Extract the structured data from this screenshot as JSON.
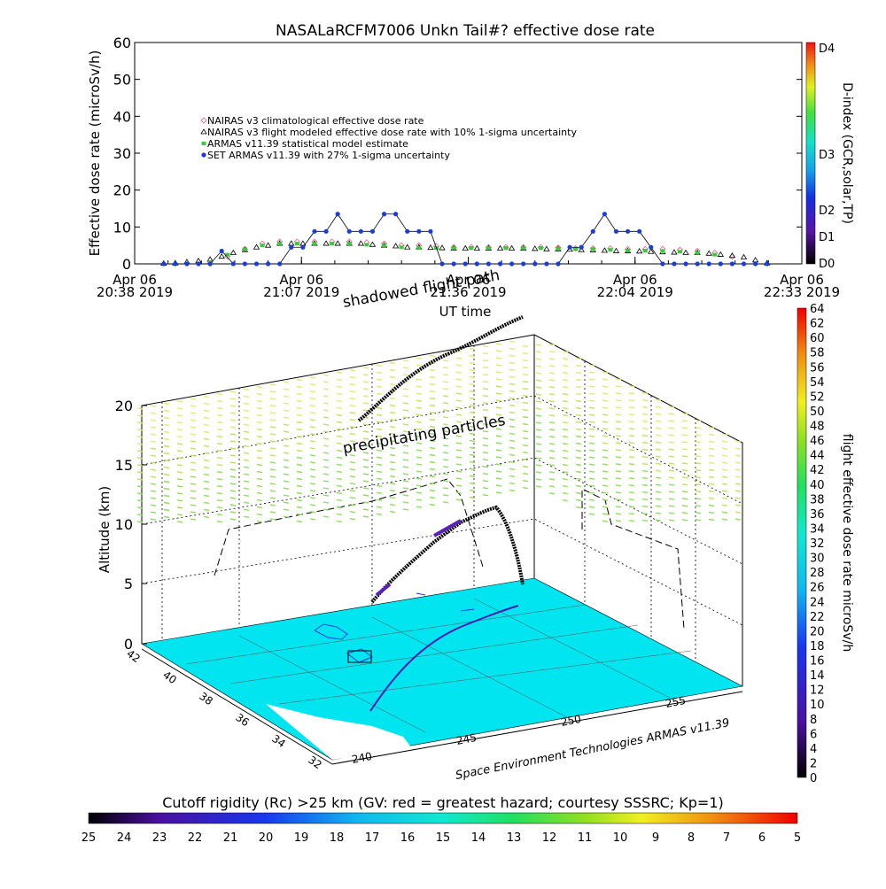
{
  "chart_data": [
    {
      "type": "line",
      "title": "NASALaRCFM7006  Unkn Tail#? effective dose rate",
      "ylabel": "Effective dose rate (microSv/h)",
      "xlabel": "UT time",
      "ylim": [
        0,
        60
      ],
      "yticks": [
        "0",
        "10",
        "20",
        "30",
        "40",
        "50",
        "60"
      ],
      "xticks": [
        {
          "date": "Apr 06",
          "time": "20:38",
          "year": "2019"
        },
        {
          "date": "Apr 06",
          "time": "21:07",
          "year": "2019"
        },
        {
          "date": "Apr 06",
          "time": "21:36",
          "year": "2019"
        },
        {
          "date": "Apr 06",
          "time": "22:04",
          "year": "2019"
        },
        {
          "date": "Apr 06",
          "time": "22:33",
          "year": "2019"
        }
      ],
      "x_unit": "minutes after 20:38 UT",
      "xlim": [
        0,
        115
      ],
      "legend_position": "upper-left",
      "series": [
        {
          "name": "NAIRAS v3 climatological effective dose rate",
          "color": "#e0608a",
          "marker": "diamond",
          "x": [
            13,
            16,
            19,
            22,
            25,
            28,
            31,
            34,
            37,
            40,
            43,
            46,
            49,
            52,
            55,
            58,
            61,
            64,
            67,
            70,
            73,
            76,
            79,
            82,
            85,
            88,
            91,
            94,
            97,
            100,
            103
          ],
          "y": [
            0.2,
            2,
            4,
            5.5,
            6,
            6,
            6,
            6,
            6,
            5.8,
            5.5,
            5,
            5,
            4.8,
            4.5,
            4.5,
            4.5,
            4.5,
            4.5,
            4.5,
            4.4,
            4.2,
            4.2,
            4.2,
            4,
            4,
            4,
            3.8,
            3.5,
            3,
            2
          ]
        },
        {
          "name": "NAIRAS v3 flight modeled effective dose rate with 10% 1-sigma uncertainty",
          "color": "#000000",
          "marker": "triangle",
          "x": [
            5,
            7,
            9,
            11,
            13,
            15,
            17,
            19,
            21,
            23,
            25,
            27,
            29,
            31,
            33,
            35,
            37,
            39,
            41,
            43,
            45,
            47,
            49,
            51,
            53,
            55,
            57,
            59,
            61,
            63,
            65,
            67,
            69,
            71,
            73,
            75,
            77,
            79,
            81,
            83,
            85,
            87,
            89,
            91,
            93,
            95,
            97,
            99,
            101,
            103,
            105,
            107,
            109
          ],
          "y": [
            0.1,
            0.2,
            0.5,
            0.8,
            1.2,
            2,
            3,
            3.8,
            4.5,
            5,
            5.5,
            5.5,
            5.5,
            5.5,
            5.5,
            5.5,
            5.5,
            5.5,
            5.2,
            5,
            4.8,
            4.5,
            4.5,
            4.4,
            4.3,
            4.2,
            4.2,
            4.2,
            4.2,
            4.2,
            4.2,
            4.2,
            4.1,
            4,
            4,
            3.9,
            3.8,
            3.7,
            3.6,
            3.5,
            3.5,
            3.4,
            3.3,
            3.2,
            3.1,
            3,
            3,
            2.8,
            2.5,
            2.2,
            1.8,
            1,
            0.2
          ]
        },
        {
          "name": "ARMAS v11.39 statistical model estimate",
          "color": "#3cc83c",
          "marker": "square",
          "x": [
            13,
            16,
            19,
            22,
            25,
            28,
            31,
            34,
            37,
            40,
            43,
            46,
            49,
            52,
            55,
            58,
            61,
            64,
            67,
            70,
            73,
            76,
            79,
            82,
            85,
            88,
            91,
            94,
            97,
            100
          ],
          "y": [
            0.5,
            2.5,
            4,
            5,
            5.5,
            5.5,
            5.5,
            5.5,
            5.5,
            5.2,
            5,
            4.5,
            4.3,
            4.3,
            4.3,
            4.3,
            4.3,
            4.3,
            4.3,
            4.3,
            4.1,
            4,
            4,
            3.8,
            3.6,
            3.6,
            3.5,
            3.3,
            3,
            2.5
          ]
        },
        {
          "name": "SET ARMAS v11.39 with 27% 1-sigma uncertainty",
          "color": "#1a3cd8",
          "marker": "circle",
          "x": [
            5,
            7,
            9,
            11,
            13,
            15,
            17,
            19,
            21,
            23,
            25,
            27,
            29,
            31,
            33,
            35,
            37,
            39,
            41,
            43,
            45,
            47,
            49,
            51,
            53,
            55,
            57,
            59,
            61,
            63,
            65,
            67,
            69,
            71,
            73,
            75,
            77,
            79,
            81,
            83,
            85,
            87,
            89,
            91,
            93,
            95,
            97,
            99,
            101,
            103,
            105,
            107,
            109
          ],
          "y": [
            0,
            0,
            0,
            0,
            0,
            3.5,
            0,
            0,
            0,
            0,
            0,
            4.5,
            4.5,
            8.8,
            8.8,
            13.5,
            8.8,
            8.8,
            8.8,
            13.5,
            13.5,
            8.8,
            8.8,
            8.8,
            0,
            0,
            0,
            0,
            0,
            0,
            0,
            0,
            0,
            0,
            0,
            4.5,
            4.5,
            8.8,
            13.5,
            8.8,
            8.8,
            8.8,
            4.5,
            0,
            0,
            0,
            0,
            0,
            0,
            0,
            0,
            0,
            0
          ]
        }
      ],
      "color_scale": {
        "label": "D-index (GCR,solar,TP)",
        "ticks": [
          "D0",
          "D1",
          "D2",
          "D3",
          "D4"
        ]
      }
    },
    {
      "type": "scatter",
      "subtype": "3d-flight-path",
      "zlabel": "Altitude (km)",
      "zticks": [
        "0",
        "5",
        "10",
        "15",
        "20"
      ],
      "lat_ticks": [
        "42",
        "40",
        "38",
        "36",
        "34",
        "32"
      ],
      "lon_ticks": [
        "240",
        "245",
        "250",
        "255"
      ],
      "annotations": [
        "shadowed flight path",
        "precipitating particles"
      ],
      "credit": "Space Environment Technologies ARMAS v11.39",
      "surface_color": "#00e5f0",
      "dose_colorbar": {
        "label": "flight effective dose rate microSv/h",
        "ticks": [
          "0",
          "2",
          "4",
          "6",
          "8",
          "10",
          "12",
          "14",
          "16",
          "18",
          "20",
          "22",
          "24",
          "26",
          "28",
          "30",
          "32",
          "34",
          "36",
          "38",
          "40",
          "42",
          "44",
          "46",
          "48",
          "50",
          "52",
          "54",
          "56",
          "58",
          "60",
          "62",
          "64"
        ]
      },
      "rc_colorbar": {
        "label": "Cutoff rigidity (Rc) >25 km (GV: red = greatest hazard; courtesy SSSRC; Kp=1)",
        "ticks": [
          "25",
          "24",
          "23",
          "22",
          "21",
          "20",
          "19",
          "18",
          "17",
          "16",
          "15",
          "14",
          "13",
          "12",
          "11",
          "10",
          "9",
          "8",
          "7",
          "6",
          "5"
        ]
      }
    }
  ]
}
